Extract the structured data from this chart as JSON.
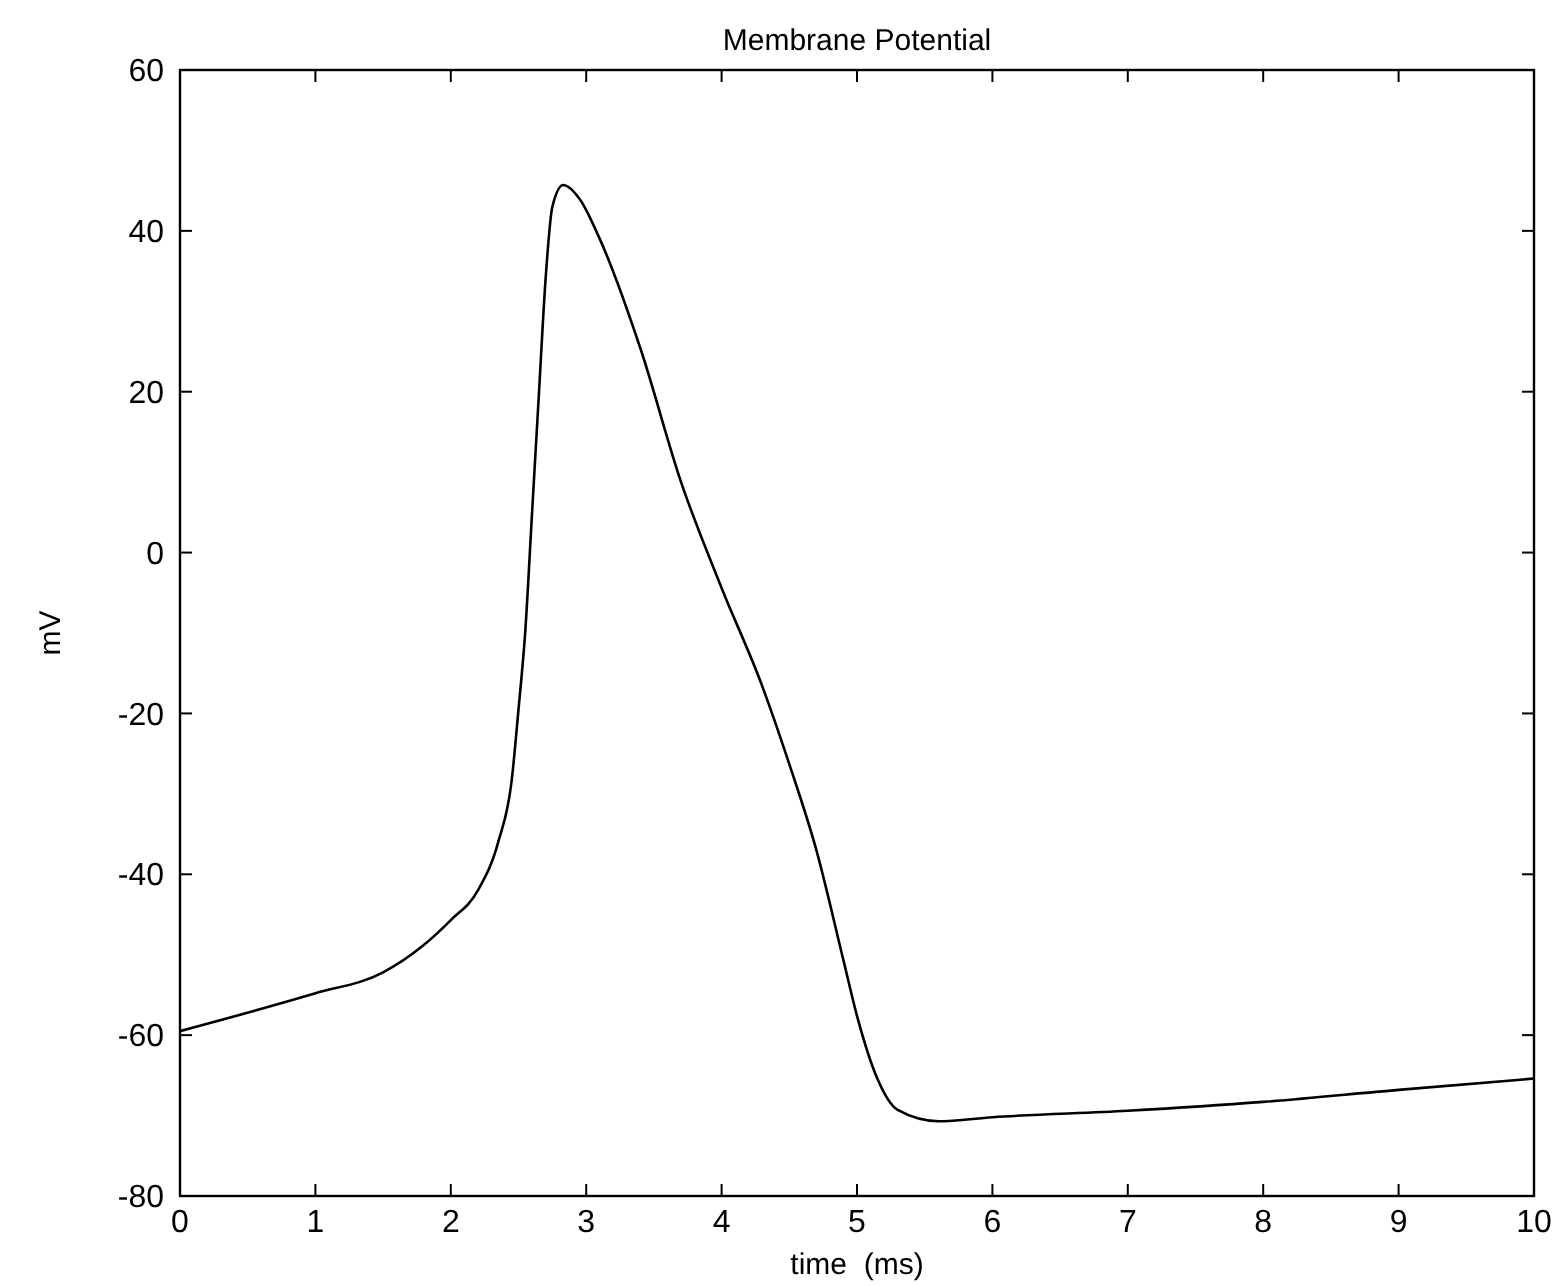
{
  "chart_data": {
    "type": "line",
    "title": "Membrane Potential",
    "xlabel": "time  (ms)",
    "ylabel": "mV",
    "x": [
      0,
      1,
      1.5,
      1.8,
      2,
      2.2,
      2.35,
      2.45,
      2.5,
      2.55,
      2.6,
      2.65,
      2.7,
      2.75,
      2.83,
      2.95,
      3.1,
      3.4,
      3.7,
      4,
      4.3,
      4.5,
      4.7,
      4.9,
      5,
      5.15,
      5.3,
      5.6,
      6,
      7,
      8,
      9,
      10
    ],
    "series": [
      {
        "color": "#000000",
        "values": [
          -59.5,
          -54.8,
          -52.2,
          -48.8,
          -45.7,
          -42,
          -36,
          -28.3,
          -19.5,
          -9.8,
          4.9,
          19.5,
          34,
          43,
          45.7,
          44,
          39,
          25.4,
          8.8,
          -4.4,
          -16.6,
          -26.3,
          -37,
          -50.7,
          -57.6,
          -65.4,
          -69.3,
          -70.7,
          -70.2,
          -69.4,
          -68.3,
          -66.8,
          -65.4
        ]
      }
    ],
    "xlim": [
      0,
      10
    ],
    "xticks": [
      0,
      1,
      2,
      3,
      4,
      5,
      6,
      7,
      8,
      9,
      10
    ],
    "ylim": [
      -80,
      60
    ],
    "yticks": [
      -80,
      -60,
      -40,
      -20,
      0,
      20,
      40,
      60
    ],
    "grid": false,
    "marker": "none",
    "line_style": "solid"
  }
}
